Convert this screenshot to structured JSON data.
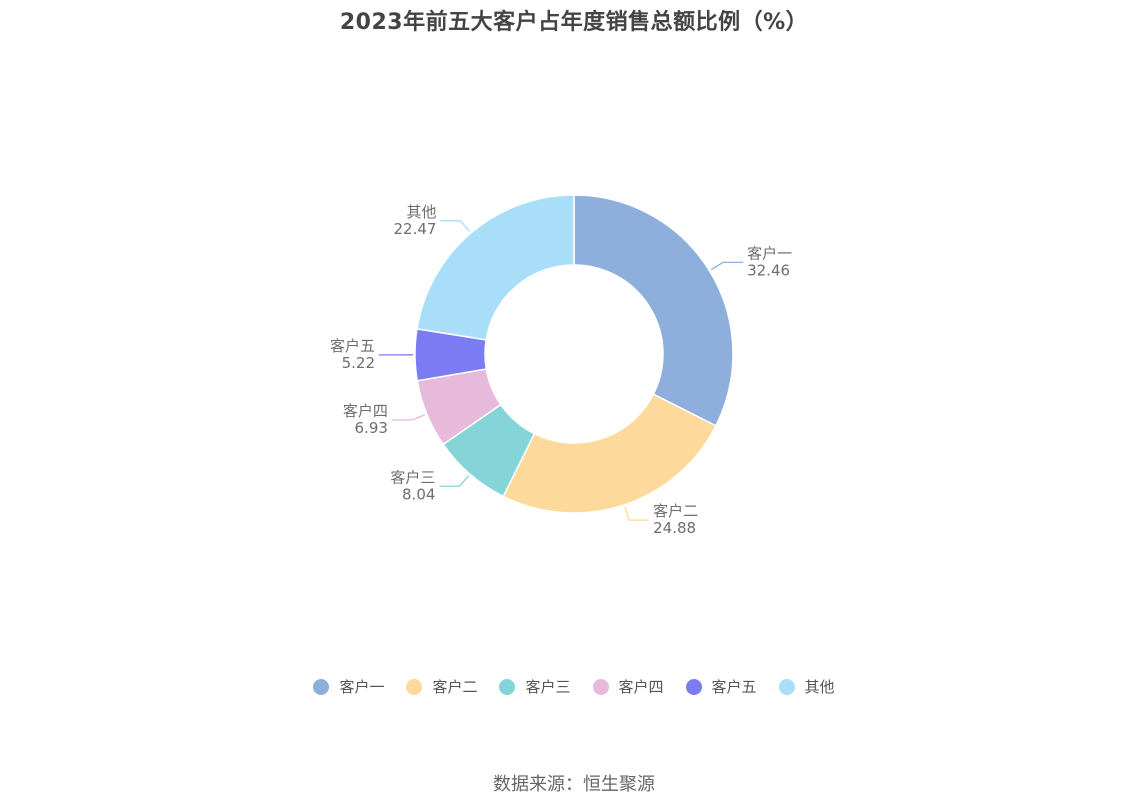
{
  "chart_data": {
    "type": "pie",
    "title": "2023年前五大客户占年度销售总额比例（%）",
    "categories": [
      "客户一",
      "客户二",
      "客户三",
      "客户四",
      "客户五",
      "其他"
    ],
    "values": [
      32.46,
      24.88,
      8.04,
      6.93,
      5.22,
      22.47
    ],
    "value_labels": [
      "32.46",
      "24.88",
      "8.04",
      "6.93",
      "5.22",
      "22.47"
    ],
    "colors": [
      "#8eaedc",
      "#fdd99b",
      "#85d4d8",
      "#e7b9db",
      "#7b7bf4",
      "#a9def9"
    ],
    "donut": true,
    "legend_position": "bottom"
  },
  "source": "数据来源：恒生聚源"
}
